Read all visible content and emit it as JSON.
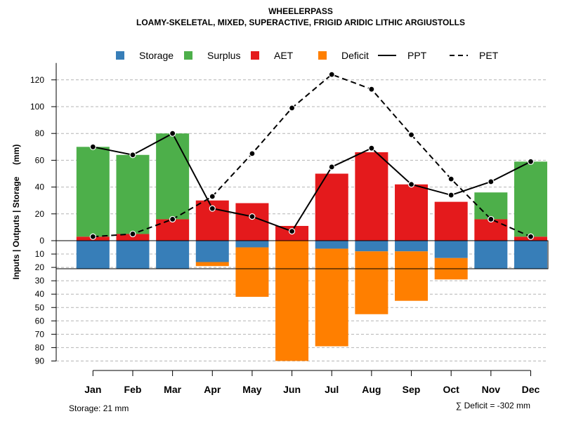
{
  "chart_data": {
    "type": "bar",
    "title": "WHEELERPASS",
    "subtitle": "LOAMY-SKELETAL, MIXED, SUPERACTIVE, FRIGID ARIDIC LITHIC ARGIUSTOLLS",
    "ylabel": "Inputs | Outputs | Storage     (mm)",
    "categories": [
      "Jan",
      "Feb",
      "Mar",
      "Apr",
      "May",
      "Jun",
      "Jul",
      "Aug",
      "Sep",
      "Oct",
      "Nov",
      "Dec"
    ],
    "ylim_upper": [
      0,
      130
    ],
    "ylim_lower": [
      0,
      90
    ],
    "yticks_upper": [
      0,
      20,
      40,
      60,
      80,
      100,
      120
    ],
    "yticks_lower": [
      10,
      20,
      30,
      40,
      50,
      60,
      70,
      80,
      90
    ],
    "gridlines": true,
    "legend": [
      {
        "name": "Storage",
        "color": "#377EB8",
        "kind": "box"
      },
      {
        "name": "Surplus",
        "color": "#4DAF4A",
        "kind": "box"
      },
      {
        "name": "AET",
        "color": "#E41A1C",
        "kind": "box"
      },
      {
        "name": "Deficit",
        "color": "#FF7F00",
        "kind": "box"
      },
      {
        "name": "PPT",
        "color": "#000000",
        "kind": "solid"
      },
      {
        "name": "PET",
        "color": "#000000",
        "kind": "dashed"
      }
    ],
    "series": [
      {
        "name": "AET",
        "values": [
          3,
          5,
          16,
          30,
          28,
          11,
          50,
          66,
          42,
          29,
          16,
          3
        ]
      },
      {
        "name": "Surplus",
        "values": [
          67,
          59,
          64,
          0,
          0,
          0,
          0,
          0,
          0,
          0,
          20,
          56
        ]
      },
      {
        "name": "Storage",
        "values": [
          21,
          21,
          21,
          16,
          5,
          0,
          6,
          8,
          8,
          13,
          21,
          21
        ]
      },
      {
        "name": "Deficit",
        "values": [
          0,
          0,
          0,
          3,
          37,
          90,
          73,
          47,
          37,
          16,
          0,
          0
        ]
      },
      {
        "name": "PPT",
        "values": [
          70,
          64,
          80,
          24,
          18,
          7,
          55,
          69,
          42,
          34,
          44,
          59
        ]
      },
      {
        "name": "PET",
        "values": [
          3,
          5,
          16,
          33,
          65,
          99,
          124,
          113,
          79,
          46,
          16,
          3
        ]
      }
    ],
    "total_storage_label": "Storage: 21 mm",
    "total_deficit_label": "∑ Deficit = -302 mm"
  }
}
